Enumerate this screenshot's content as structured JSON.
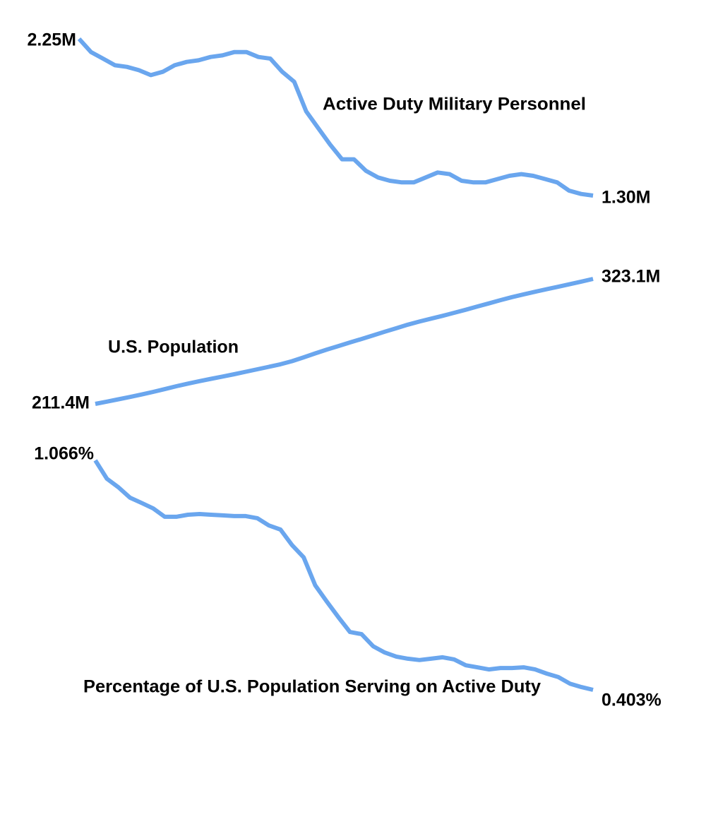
{
  "chart_data": [
    {
      "type": "line",
      "title": "Active Duty Military Personnel",
      "color": "#6aa6ee",
      "values": [
        2.25,
        2.17,
        2.13,
        2.09,
        2.08,
        2.06,
        2.03,
        2.05,
        2.09,
        2.11,
        2.12,
        2.14,
        2.15,
        2.17,
        2.17,
        2.14,
        2.13,
        2.05,
        1.99,
        1.81,
        1.71,
        1.61,
        1.52,
        1.52,
        1.45,
        1.41,
        1.39,
        1.38,
        1.38,
        1.41,
        1.44,
        1.43,
        1.39,
        1.38,
        1.38,
        1.4,
        1.42,
        1.43,
        1.42,
        1.4,
        1.38,
        1.33,
        1.31,
        1.3
      ],
      "value_labels": [
        "2.25M",
        null,
        null,
        null,
        null,
        null,
        null,
        null,
        null,
        null,
        null,
        null,
        null,
        null,
        null,
        null,
        null,
        null,
        null,
        null,
        null,
        null,
        null,
        null,
        null,
        null,
        null,
        null,
        null,
        null,
        null,
        null,
        null,
        null,
        null,
        null,
        null,
        null,
        null,
        null,
        null,
        null,
        null,
        "1.30M"
      ]
    },
    {
      "type": "line",
      "title": "U.S. Population",
      "color": "#6aa6ee",
      "values": [
        211.4,
        213.4,
        215.5,
        217.6,
        219.8,
        222.1,
        224.6,
        227.2,
        229.5,
        231.7,
        233.8,
        235.8,
        237.9,
        240.1,
        242.3,
        244.5,
        246.8,
        249.6,
        253.0,
        256.5,
        259.9,
        263.1,
        266.3,
        269.4,
        272.6,
        275.9,
        279.0,
        282.2,
        285.0,
        287.6,
        290.1,
        292.8,
        295.5,
        298.4,
        301.2,
        304.1,
        306.8,
        309.3,
        311.6,
        313.9,
        316.1,
        318.4,
        320.7,
        323.1
      ],
      "value_labels": [
        "211.4M",
        null,
        null,
        null,
        null,
        null,
        null,
        null,
        null,
        null,
        null,
        null,
        null,
        null,
        null,
        null,
        null,
        null,
        null,
        null,
        null,
        null,
        null,
        null,
        null,
        null,
        null,
        null,
        null,
        null,
        null,
        null,
        null,
        null,
        null,
        null,
        null,
        null,
        null,
        null,
        null,
        null,
        null,
        "323.1M"
      ]
    },
    {
      "type": "line",
      "title": "Percentage of U.S. Population Serving on Active Duty",
      "color": "#6aa6ee",
      "values": [
        1.066,
        1.013,
        0.988,
        0.958,
        0.943,
        0.927,
        0.903,
        0.903,
        0.909,
        0.911,
        0.909,
        0.907,
        0.905,
        0.905,
        0.899,
        0.878,
        0.866,
        0.821,
        0.786,
        0.705,
        0.658,
        0.613,
        0.57,
        0.564,
        0.529,
        0.511,
        0.499,
        0.493,
        0.489,
        0.493,
        0.497,
        0.491,
        0.474,
        0.468,
        0.462,
        0.466,
        0.466,
        0.468,
        0.462,
        0.45,
        0.44,
        0.421,
        0.411,
        0.403
      ],
      "value_labels": [
        "1.066%",
        null,
        null,
        null,
        null,
        null,
        null,
        null,
        null,
        null,
        null,
        null,
        null,
        null,
        null,
        null,
        null,
        null,
        null,
        null,
        null,
        null,
        null,
        null,
        null,
        null,
        null,
        null,
        null,
        null,
        null,
        null,
        null,
        null,
        null,
        null,
        null,
        null,
        null,
        null,
        null,
        null,
        null,
        "0.403%"
      ]
    }
  ]
}
